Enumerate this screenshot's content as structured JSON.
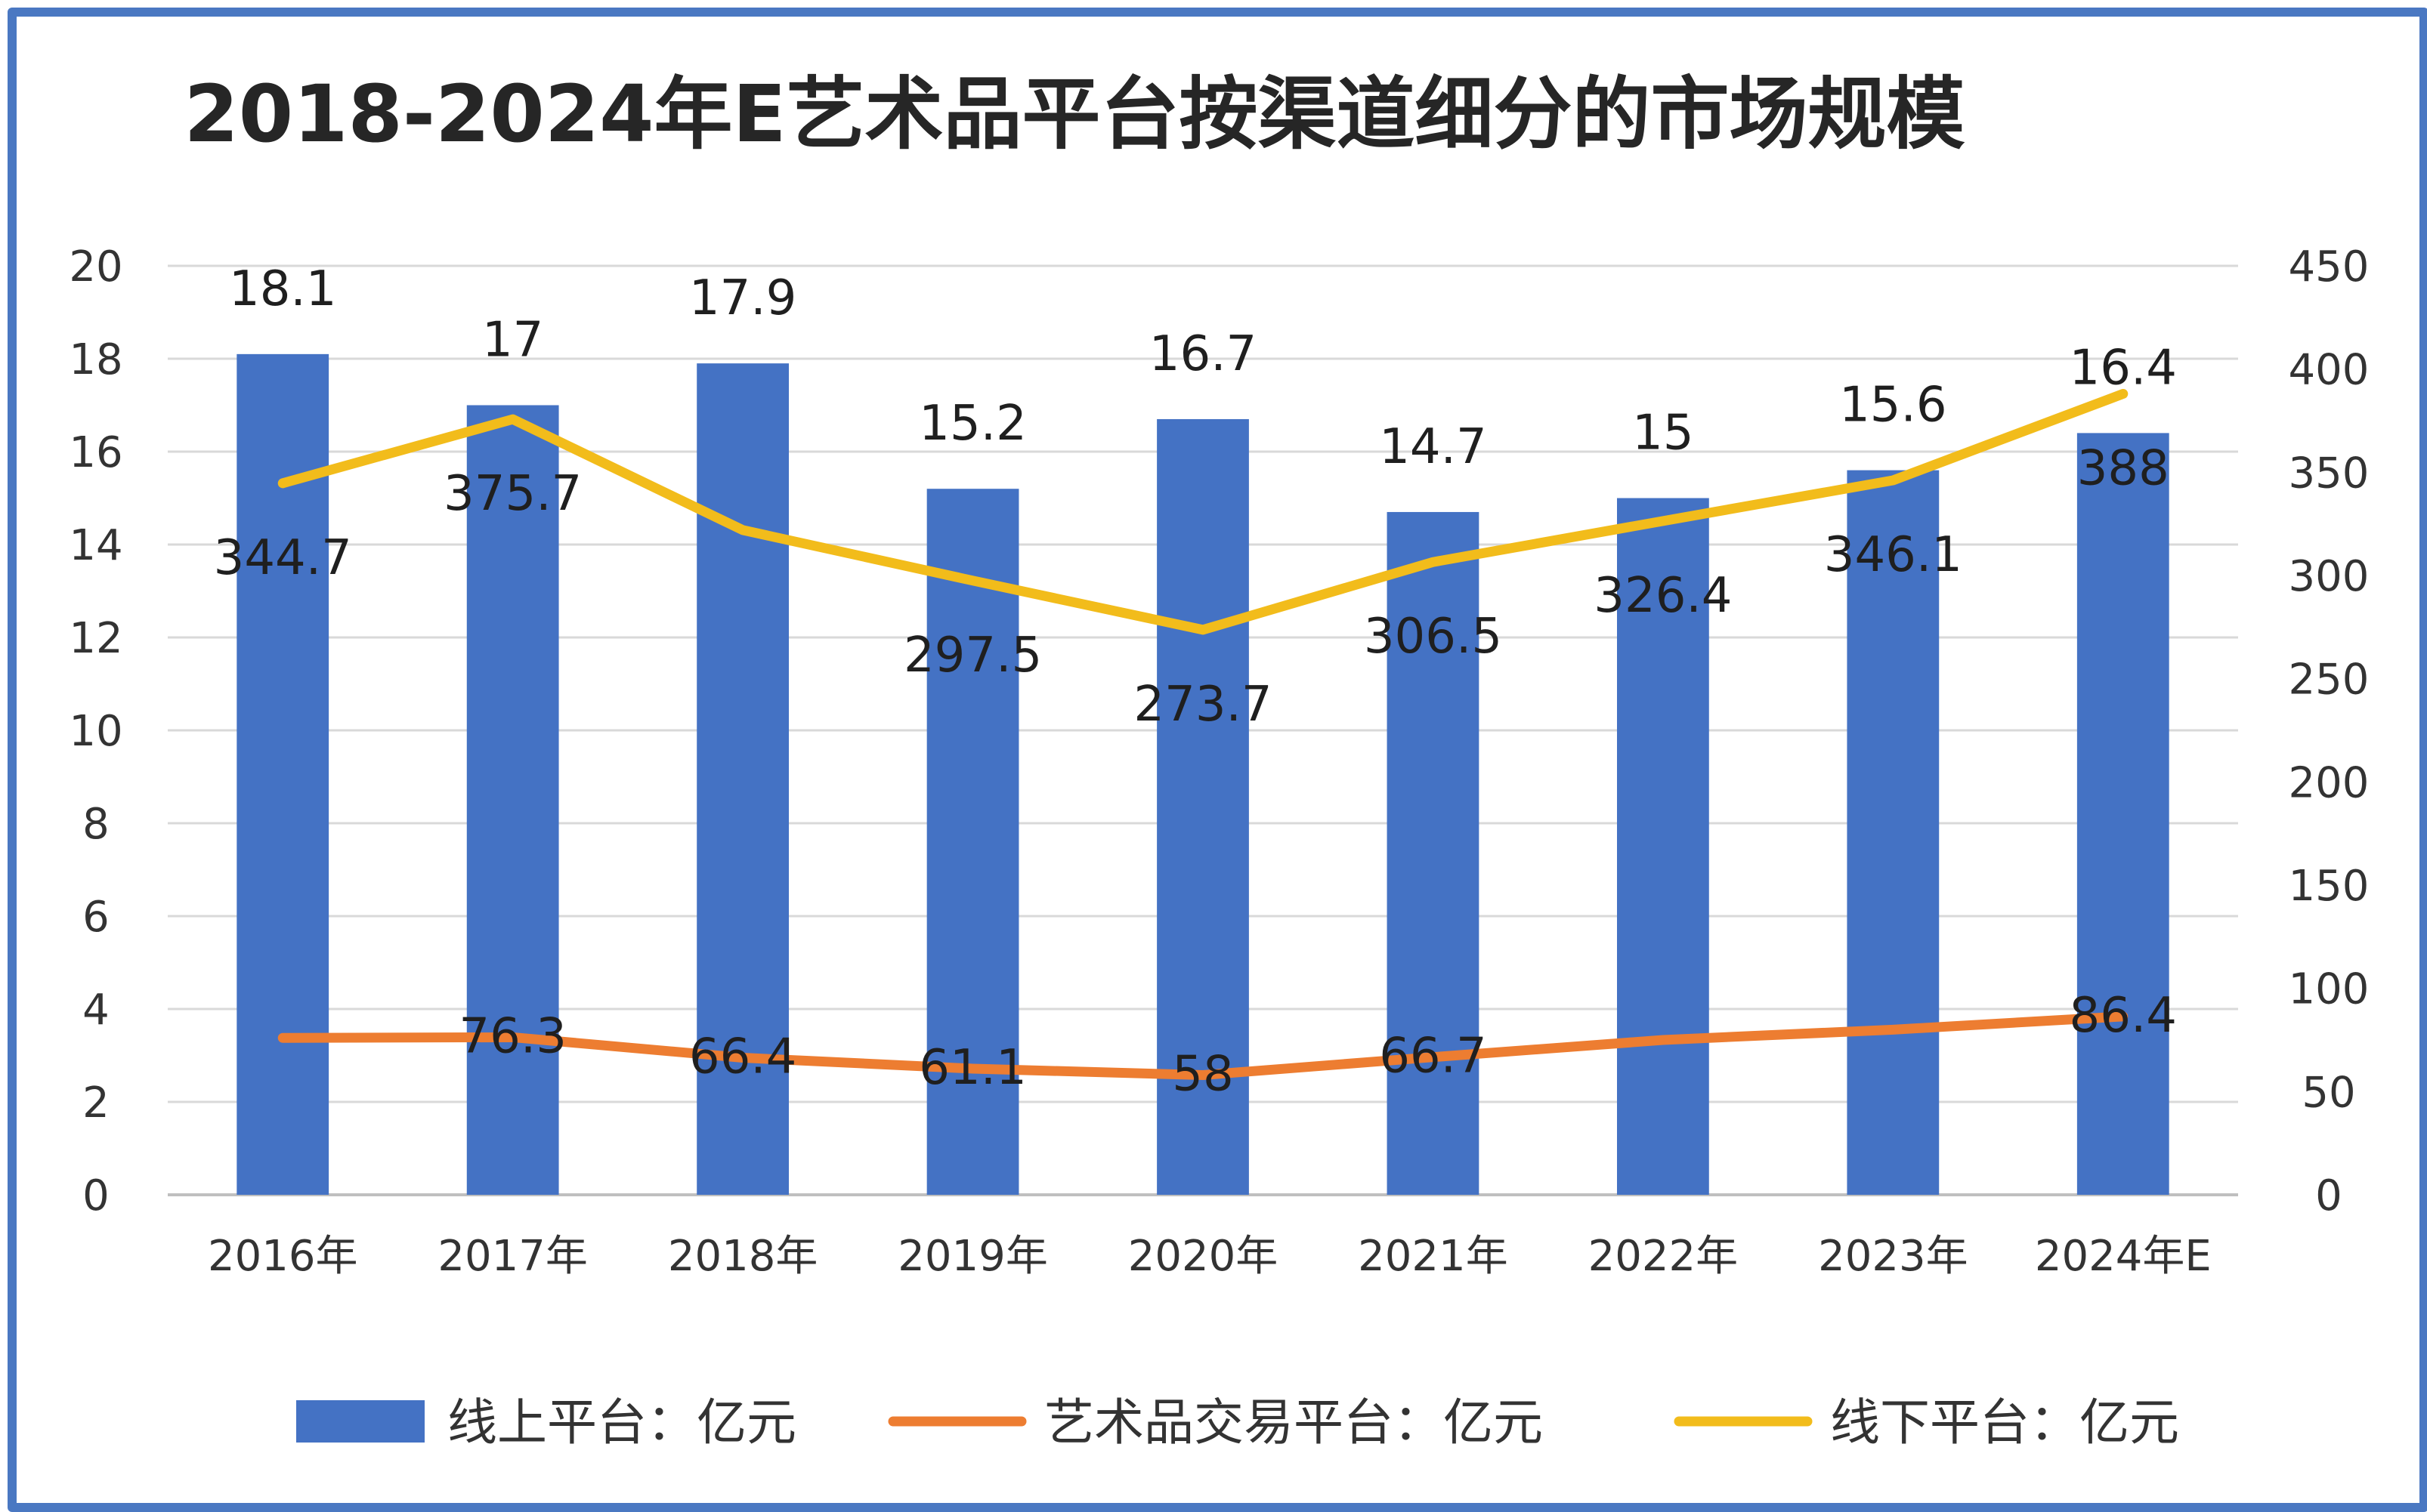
{
  "chart_data": {
    "type": "bar",
    "title": "2018-2024年E艺术品平台按渠道细分的市场规模",
    "categories": [
      "2016年",
      "2017年",
      "2018年",
      "2019年",
      "2020年",
      "2021年",
      "2022年",
      "2023年",
      "2024年E"
    ],
    "y_left_ticks": [
      "0",
      "2",
      "4",
      "6",
      "8",
      "10",
      "12",
      "14",
      "16",
      "18",
      "20"
    ],
    "y_right_ticks": [
      "0",
      "50",
      "100",
      "150",
      "200",
      "250",
      "300",
      "350",
      "400",
      "450"
    ],
    "ylim_left": [
      0,
      20
    ],
    "ylim_right": [
      0,
      450
    ],
    "grid": true,
    "legend_position": "bottom",
    "series": [
      {
        "name": "线上平台：亿元",
        "type": "bar",
        "axis": "left",
        "color": "#4472c4",
        "values": [
          18.1,
          17,
          17.9,
          15.2,
          16.7,
          14.7,
          15,
          15.6,
          16.4
        ],
        "labels": [
          "18.1",
          "17",
          "17.9",
          "15.2",
          "16.7",
          "14.7",
          "15",
          "15.6",
          "16.4"
        ]
      },
      {
        "name": "艺术品交易平台：亿元",
        "type": "line",
        "axis": "right",
        "color": "#ed7d31",
        "values": [
          76,
          76.3,
          66.4,
          61.1,
          58,
          66.7,
          75,
          80,
          86.4
        ],
        "labels": [
          "",
          "76.3",
          "66.4",
          "61.1",
          "58",
          "66.7",
          "",
          "",
          "86.4"
        ]
      },
      {
        "name": "线下平台：亿元",
        "type": "line",
        "axis": "right",
        "color": "#f2bc1b",
        "values": [
          344.7,
          375.7,
          322,
          297.5,
          273.7,
          306.5,
          326.4,
          346.1,
          388
        ],
        "labels": [
          "344.7",
          "375.7",
          "",
          "297.5",
          "273.7",
          "306.5",
          "326.4",
          "346.1",
          "388"
        ]
      }
    ]
  }
}
